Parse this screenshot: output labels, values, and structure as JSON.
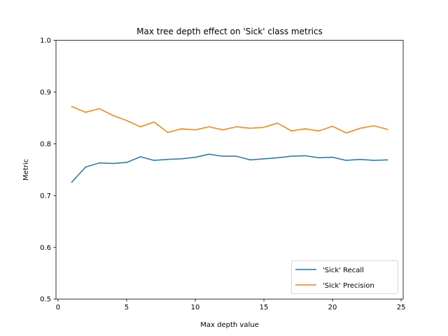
{
  "chart_data": {
    "type": "line",
    "title": "Max tree depth effect on 'Sick' class metrics",
    "xlabel": "Max depth value",
    "ylabel": "Metric",
    "xlim": [
      -0.15,
      25.15
    ],
    "ylim": [
      0.5,
      1.0
    ],
    "xticks": [
      0,
      5,
      10,
      15,
      20,
      25
    ],
    "yticks": [
      0.5,
      0.6,
      0.7,
      0.8,
      0.9,
      1.0
    ],
    "xtick_labels": [
      "0",
      "5",
      "10",
      "15",
      "20",
      "25"
    ],
    "ytick_labels": [
      "0.5",
      "0.6",
      "0.7",
      "0.8",
      "0.9",
      "1.0"
    ],
    "grid": false,
    "legend_position": "lower right",
    "x": [
      1,
      2,
      3,
      4,
      5,
      6,
      7,
      8,
      9,
      10,
      11,
      12,
      13,
      14,
      15,
      16,
      17,
      18,
      19,
      20,
      21,
      22,
      23,
      24
    ],
    "series": [
      {
        "name": "'Sick' Recall",
        "color": "#1f77b4",
        "values": [
          0.726,
          0.755,
          0.763,
          0.762,
          0.764,
          0.775,
          0.768,
          0.77,
          0.771,
          0.774,
          0.78,
          0.776,
          0.776,
          0.769,
          0.771,
          0.773,
          0.776,
          0.777,
          0.773,
          0.774,
          0.768,
          0.77,
          0.768,
          0.769
        ]
      },
      {
        "name": "'Sick' Precision",
        "color": "#ff7f0e",
        "values": [
          0.872,
          0.861,
          0.868,
          0.855,
          0.845,
          0.833,
          0.842,
          0.822,
          0.829,
          0.827,
          0.833,
          0.827,
          0.833,
          0.83,
          0.832,
          0.84,
          0.825,
          0.829,
          0.825,
          0.834,
          0.821,
          0.83,
          0.835,
          0.828
        ]
      }
    ]
  }
}
